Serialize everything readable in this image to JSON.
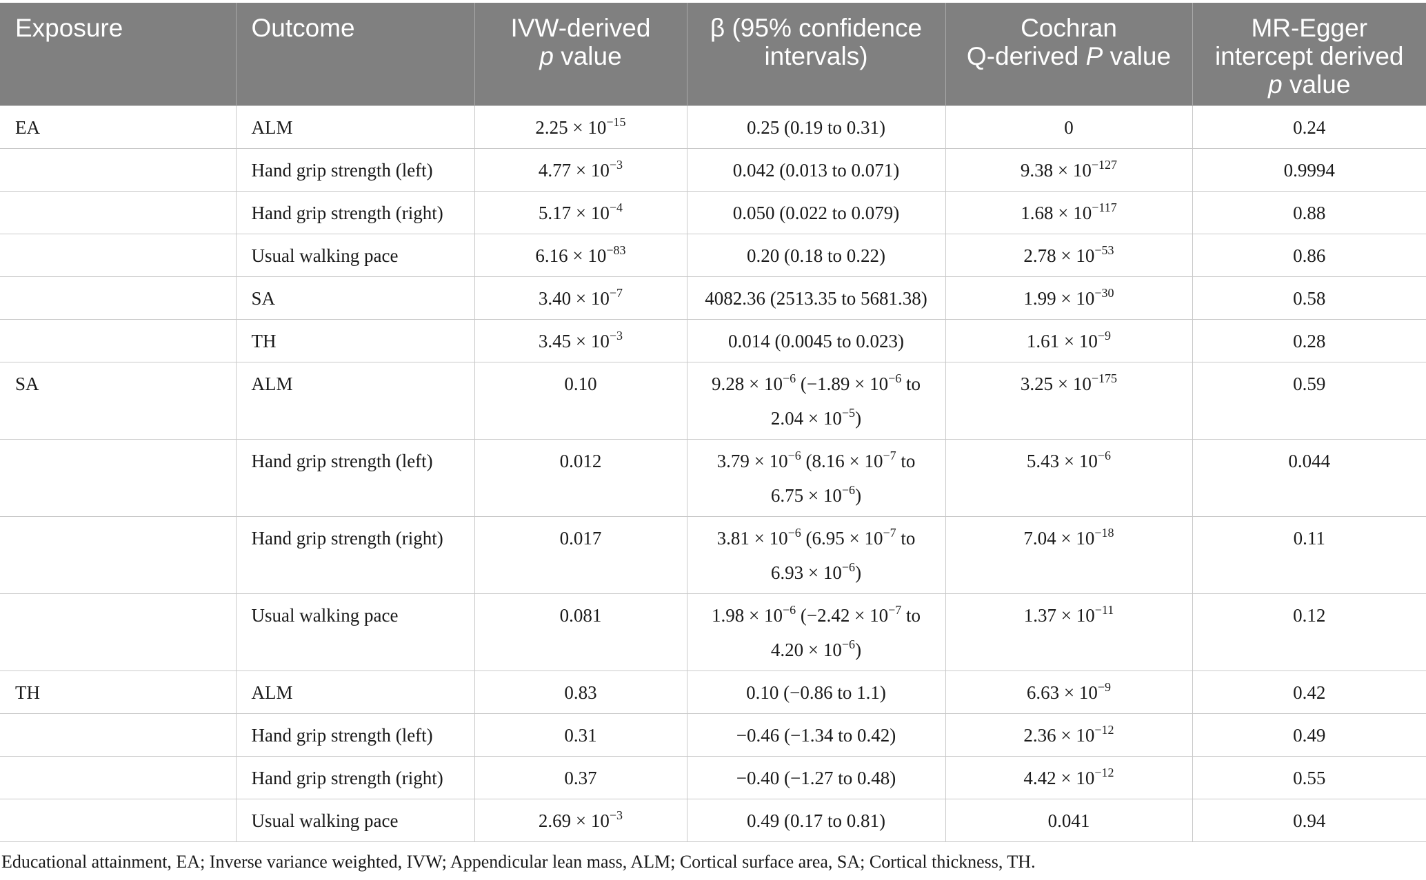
{
  "headers": {
    "exposure": "Exposure",
    "outcome": "Outcome",
    "ivw": [
      "IVW-derived",
      "p value"
    ],
    "beta": [
      "β (95% confidence",
      "intervals)"
    ],
    "cochran": [
      "Cochran",
      "Q-derived P value"
    ],
    "egger": [
      "MR-Egger",
      "intercept derived",
      "p value"
    ]
  },
  "rows": [
    {
      "exposure": "EA",
      "outcome": "ALM",
      "ivw": "2.25 × 10^−15",
      "beta": "0.25 (0.19 to 0.31)",
      "cochran": "0",
      "egger": "0.24"
    },
    {
      "exposure": "",
      "outcome": "Hand grip strength (left)",
      "ivw": "4.77 × 10^−3",
      "beta": "0.042 (0.013 to 0.071)",
      "cochran": "9.38 × 10^−127",
      "egger": "0.9994"
    },
    {
      "exposure": "",
      "outcome": "Hand grip strength (right)",
      "ivw": "5.17 × 10^−4",
      "beta": "0.050 (0.022 to 0.079)",
      "cochran": "1.68 × 10^−117",
      "egger": "0.88"
    },
    {
      "exposure": "",
      "outcome": "Usual walking pace",
      "ivw": "6.16 × 10^−83",
      "beta": "0.20 (0.18 to 0.22)",
      "cochran": "2.78 × 10^−53",
      "egger": "0.86"
    },
    {
      "exposure": "",
      "outcome": "SA",
      "ivw": "3.40 × 10^−7",
      "beta": "4082.36 (2513.35 to 5681.38)",
      "cochran": "1.99 × 10^−30",
      "egger": "0.58"
    },
    {
      "exposure": "",
      "outcome": "TH",
      "ivw": "3.45 × 10^−3",
      "beta": "0.014 (0.0045 to 0.023)",
      "cochran": "1.61 × 10^−9",
      "egger": "0.28"
    },
    {
      "exposure": "SA",
      "outcome": "ALM",
      "ivw": "0.10",
      "beta": [
        "9.28 × 10^−6 (−1.89 × 10^−6 to",
        "2.04 × 10^−5)"
      ],
      "cochran": "3.25 × 10^−175",
      "egger": "0.59"
    },
    {
      "exposure": "",
      "outcome": "Hand grip strength (left)",
      "ivw": "0.012",
      "beta": [
        "3.79 × 10^−6 (8.16 × 10^−7 to",
        "6.75 × 10^−6)"
      ],
      "cochran": "5.43 × 10^−6",
      "egger": "0.044"
    },
    {
      "exposure": "",
      "outcome": "Hand grip strength (right)",
      "ivw": "0.017",
      "beta": [
        "3.81 × 10^−6 (6.95 × 10^−7 to",
        "6.93 × 10^−6)"
      ],
      "cochran": "7.04 × 10^−18",
      "egger": "0.11"
    },
    {
      "exposure": "",
      "outcome": "Usual walking pace",
      "ivw": "0.081",
      "beta": [
        "1.98 × 10^−6 (−2.42 × 10^−7 to",
        "4.20 × 10^−6)"
      ],
      "cochran": "1.37 × 10^−11",
      "egger": "0.12"
    },
    {
      "exposure": "TH",
      "outcome": "ALM",
      "ivw": "0.83",
      "beta": "0.10 (−0.86 to 1.1)",
      "cochran": "6.63 × 10^−9",
      "egger": "0.42"
    },
    {
      "exposure": "",
      "outcome": "Hand grip strength (left)",
      "ivw": "0.31",
      "beta": "−0.46 (−1.34 to 0.42)",
      "cochran": "2.36 × 10^−12",
      "egger": "0.49"
    },
    {
      "exposure": "",
      "outcome": "Hand grip strength (right)",
      "ivw": "0.37",
      "beta": "−0.40 (−1.27 to 0.48)",
      "cochran": "4.42 × 10^−12",
      "egger": "0.55"
    },
    {
      "exposure": "",
      "outcome": "Usual walking pace",
      "ivw": "2.69 × 10^−3",
      "beta": "0.49 (0.17 to 0.81)",
      "cochran": "0.041",
      "egger": "0.94"
    }
  ],
  "footnote": "Educational attainment, EA; Inverse variance weighted, IVW; Appendicular lean mass, ALM; Cortical surface area, SA; Cortical thickness, TH."
}
